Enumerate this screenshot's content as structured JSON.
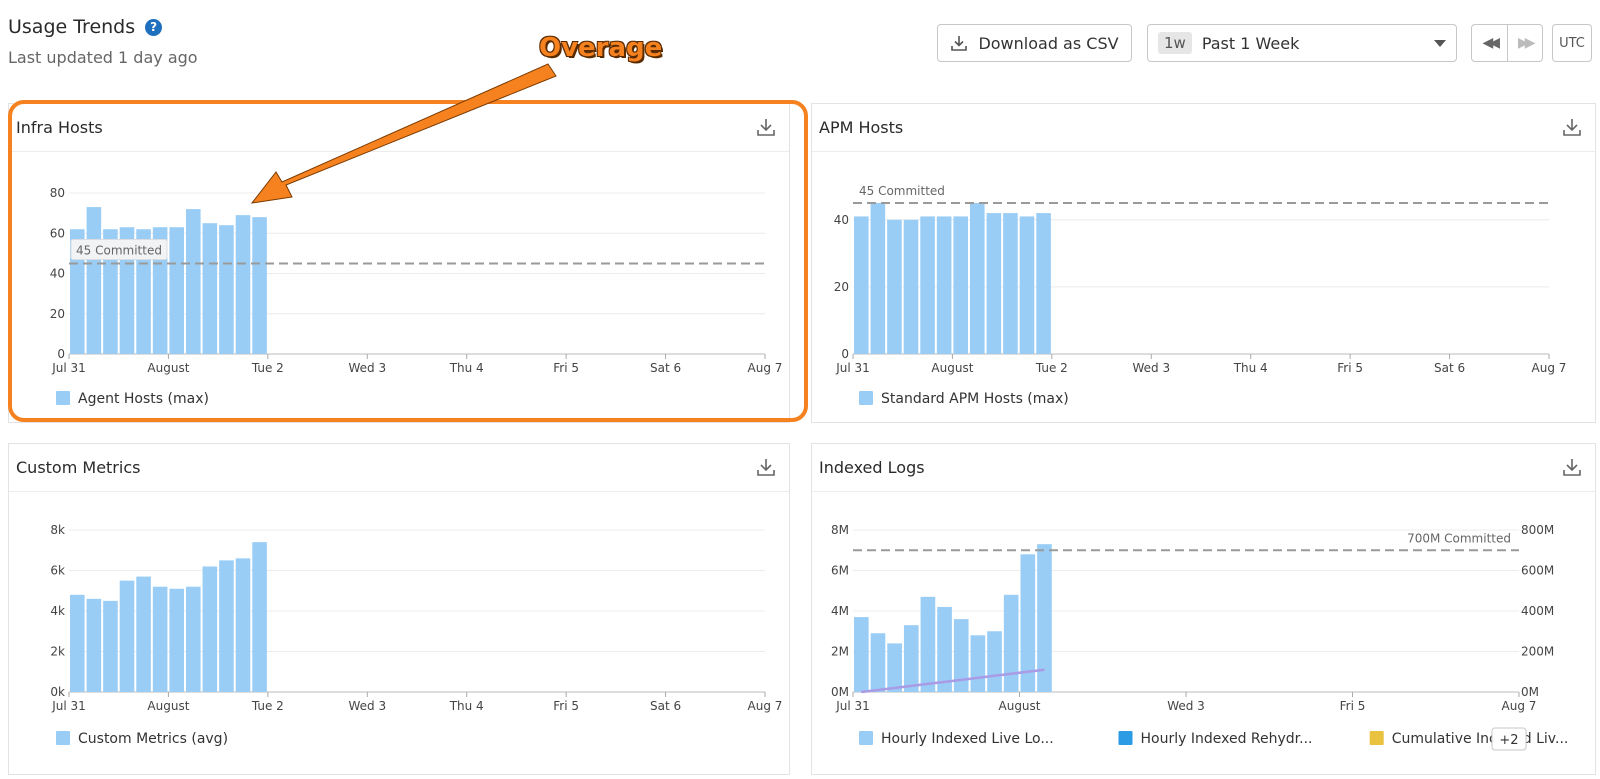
{
  "header": {
    "title": "Usage Trends",
    "subtitle": "Last updated 1 day ago",
    "help_icon": "question-circle-icon"
  },
  "toolbar": {
    "download_label": "Download as CSV",
    "range_chip": "1w",
    "range_label": "Past 1 Week",
    "prev_icon": "rewind-icon",
    "next_icon": "fast-forward-icon",
    "timezone": "UTC"
  },
  "annotation": {
    "text": "Overage",
    "color": "#f5821f"
  },
  "colors": {
    "bar": "#99cdf5",
    "committed_line": "#9a9a9a",
    "rehydrated": "#2b9be6",
    "cumulative": "#e9c23f",
    "cumulative_line": "#a99be6"
  },
  "panels": [
    {
      "id": "infra",
      "title": "Infra Hosts",
      "legend": [
        {
          "label": "Agent Hosts (max)",
          "color": "#99cdf5"
        }
      ],
      "chart_data": {
        "type": "bar",
        "title": "Infra Hosts",
        "ylim": [
          0,
          80
        ],
        "yticks": [
          "0",
          "20",
          "40",
          "60",
          "80"
        ],
        "xticks": [
          "Jul 31",
          "August",
          "Tue 2",
          "Wed 3",
          "Thu 4",
          "Fri 5",
          "Sat 6",
          "Aug 7"
        ],
        "x_span_slots": 42,
        "values": [
          62,
          73,
          62,
          63,
          62,
          63,
          63,
          72,
          65,
          64,
          69,
          68
        ],
        "committed": {
          "value": 45,
          "label": "45 Committed"
        }
      }
    },
    {
      "id": "apm",
      "title": "APM Hosts",
      "legend": [
        {
          "label": "Standard APM Hosts (max)",
          "color": "#99cdf5"
        }
      ],
      "chart_data": {
        "type": "bar",
        "title": "APM Hosts",
        "ylim": [
          0,
          45
        ],
        "yticks": [
          "0",
          "20",
          "40"
        ],
        "ytick_values": [
          0,
          20,
          40
        ],
        "xticks": [
          "Jul 31",
          "August",
          "Tue 2",
          "Wed 3",
          "Thu 4",
          "Fri 5",
          "Sat 6",
          "Aug 7"
        ],
        "x_span_slots": 42,
        "values": [
          41,
          45,
          40,
          40,
          41,
          41,
          41,
          45,
          42,
          42,
          41,
          42
        ],
        "committed": {
          "value": 45,
          "label": "45 Committed"
        }
      }
    },
    {
      "id": "custom",
      "title": "Custom Metrics",
      "legend": [
        {
          "label": "Custom Metrics (avg)",
          "color": "#99cdf5"
        }
      ],
      "chart_data": {
        "type": "bar",
        "title": "Custom Metrics",
        "ylim": [
          0,
          8000
        ],
        "yticks": [
          "0k",
          "2k",
          "4k",
          "6k",
          "8k"
        ],
        "xticks": [
          "Jul 31",
          "August",
          "Tue 2",
          "Wed 3",
          "Thu 4",
          "Fri 5",
          "Sat 6",
          "Aug 7"
        ],
        "x_span_slots": 42,
        "values": [
          4800,
          4600,
          4500,
          5500,
          5700,
          5200,
          5100,
          5200,
          6200,
          6500,
          6600,
          7400
        ]
      }
    },
    {
      "id": "logs",
      "title": "Indexed Logs",
      "legend": [
        {
          "label": "Hourly Indexed Live Lo...",
          "color": "#99cdf5"
        },
        {
          "label": "Hourly Indexed Rehydr...",
          "color": "#2b9be6"
        },
        {
          "label": "Cumulative Indexed Liv...",
          "color": "#e9c23f"
        }
      ],
      "legend_more": "+2",
      "chart_data": {
        "type": "bar",
        "title": "Indexed Logs",
        "ylim": [
          0,
          8000000
        ],
        "yticks": [
          "0M",
          "2M",
          "4M",
          "6M",
          "8M"
        ],
        "y2ticks": [
          "0M",
          "200M",
          "400M",
          "600M",
          "800M"
        ],
        "xticks": [
          "Jul 31",
          "August",
          "Wed 3",
          "Fri 5",
          "Aug 7"
        ],
        "x_span_slots": 40,
        "values": [
          3700000,
          2900000,
          2400000,
          3300000,
          4700000,
          4200000,
          3600000,
          2800000,
          3000000,
          4800000,
          6800000,
          7300000
        ],
        "cumulative_line": [
          0,
          10000000,
          20000000,
          30000000,
          40000000,
          50000000,
          60000000,
          70000000,
          80000000,
          90000000,
          100000000,
          110000000
        ],
        "y2lim": [
          0,
          800000000
        ],
        "committed": {
          "value": 700000000,
          "label": "700M Committed",
          "axis": "y2"
        }
      }
    }
  ]
}
